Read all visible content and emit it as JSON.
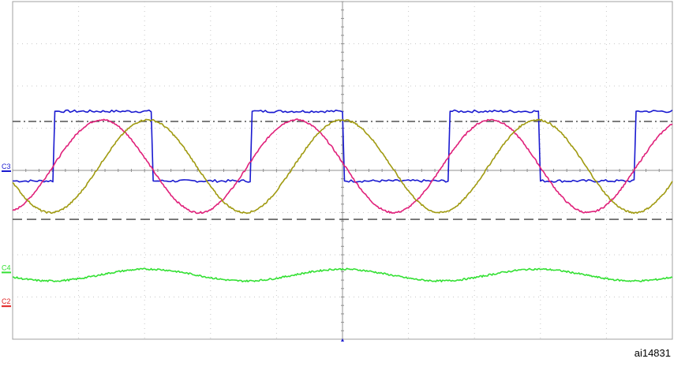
{
  "figure_id": "ai14831",
  "chart_data": {
    "type": "line",
    "title": "",
    "xlabel": "",
    "ylabel": "",
    "x_divisions": 10,
    "y_divisions": 8,
    "xlim": [
      0,
      10
    ],
    "ylim": [
      -4,
      4
    ],
    "grid": "dotted",
    "cursors": [
      {
        "style": "dash-dot",
        "y": 1.16,
        "color": "#404040"
      },
      {
        "style": "dashed",
        "y": -1.16,
        "color": "#404040"
      }
    ],
    "channels": [
      {
        "label": "C3",
        "color": "#1a1ad0",
        "kind": "square",
        "ref_y": 0,
        "high": 1.4,
        "low": -0.25,
        "rise_times": [
          0.61,
          3.6,
          6.6,
          9.42
        ],
        "fall_times": [
          2.1,
          5.0,
          7.97
        ],
        "initial": "low"
      },
      {
        "label": "",
        "color": "#e0207a",
        "kind": "sine",
        "offset": 0.1,
        "amplitude": 1.1,
        "period": 2.95,
        "peak_at": 1.35
      },
      {
        "label": "",
        "color": "#a09a10",
        "kind": "sine",
        "offset": 0.1,
        "amplitude": 1.1,
        "period": 2.95,
        "peak_at": 2.05
      },
      {
        "label": "C4",
        "color": "#33e033",
        "kind": "sine",
        "ref_y": -2.4,
        "offset": -2.48,
        "amplitude": 0.14,
        "period": 2.95,
        "peak_at": 2.05
      },
      {
        "label": "C2",
        "color": "#e02020",
        "kind": "marker",
        "ref_y": -3.2
      }
    ]
  }
}
